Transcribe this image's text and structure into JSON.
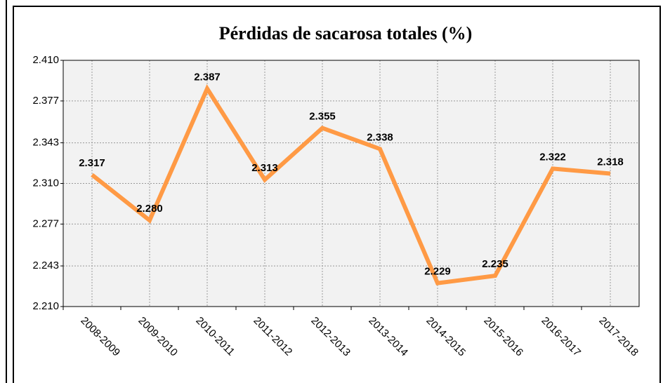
{
  "chart_data": {
    "type": "line",
    "title": "Pérdidas de sacarosa totales (%)",
    "categories": [
      "2008-2009",
      "2009-2010",
      "2010-2011",
      "2011-2012",
      "2012-2013",
      "2013-2014",
      "2014-2015",
      "2015-2016",
      "2016-2017",
      "2017-2018"
    ],
    "series": [
      {
        "name": "Pérdidas de sacarosa totales",
        "color": "#ff9a45",
        "values": [
          2.317,
          2.28,
          2.387,
          2.313,
          2.355,
          2.338,
          2.229,
          2.235,
          2.322,
          2.318
        ],
        "value_labels": [
          "2.317",
          "2.280",
          "2.387",
          "2.313",
          "2.355",
          "2.338",
          "2.229",
          "2.235",
          "2.322",
          "2.318"
        ]
      }
    ],
    "ylim": [
      2.21,
      2.41
    ],
    "yticks": [
      {
        "value": 2.21,
        "label": "2.210"
      },
      2.243,
      2.277,
      {
        "value": 2.31,
        "label": "2.310"
      },
      2.343,
      2.377,
      {
        "value": 2.41,
        "label": "2.410"
      }
    ],
    "grid": true
  }
}
